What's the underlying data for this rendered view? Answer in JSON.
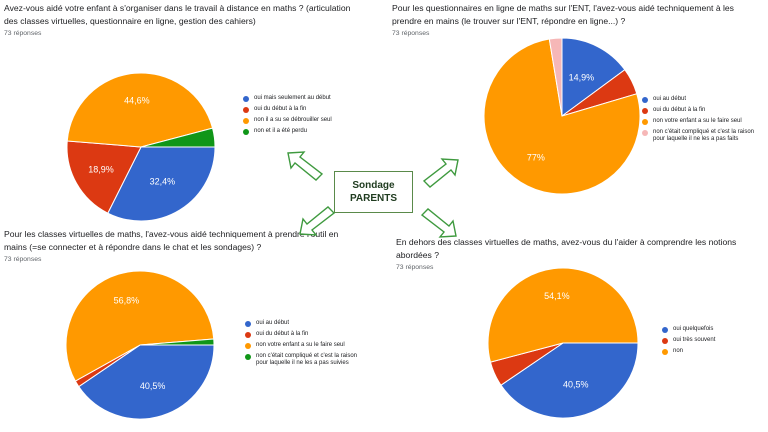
{
  "center": {
    "line1": "Sondage",
    "line2": "PARENTS"
  },
  "colors": {
    "blue": "#3366cc",
    "red": "#dc3912",
    "orange": "#ff9900",
    "green": "#109618",
    "pink": "#f6b7b7"
  },
  "chart_data": [
    {
      "type": "pie",
      "title": "Avez-vous aidé votre enfant à s'organiser dans le travail à distance en maths ? (articulation des classes virtuelles, questionnaire en ligne, gestion des cahiers)",
      "subtitle": "73 réponses",
      "categories": [
        "oui mais seulement au début",
        "oui du début à la fin",
        "non il a su se débrouiller seul",
        "non et il a été perdu"
      ],
      "values": [
        32.4,
        18.9,
        44.6,
        4.1
      ],
      "slice_labels": [
        "32,4%",
        "18,9%",
        "44,6%",
        ""
      ],
      "colors": [
        "#3366cc",
        "#dc3912",
        "#ff9900",
        "#109618"
      ],
      "legend": "right"
    },
    {
      "type": "pie",
      "title": "Pour les questionnaires en ligne de maths sur l'ENT, l'avez-vous aidé techniquement à les prendre en mains (le trouver sur l'ENT, répondre en ligne...) ?",
      "subtitle": "73 réponses",
      "categories": [
        "oui au début",
        "oui du début à la fin",
        "non votre enfant a su le faire seul",
        "non c'était compliqué et c'est la raison pour laquelle il ne les a pas faits"
      ],
      "values": [
        14.9,
        5.5,
        77,
        2.6
      ],
      "slice_labels": [
        "14,9%",
        "",
        "77%",
        ""
      ],
      "colors": [
        "#3366cc",
        "#dc3912",
        "#ff9900",
        "#f6b7b7"
      ],
      "legend": "right"
    },
    {
      "type": "pie",
      "title": "Pour les classes virtuelles de maths, l'avez-vous aidé techniquement à prendre l'outil en mains (=se connecter et à répondre dans le chat et les sondages) ?",
      "subtitle": "73 réponses",
      "categories": [
        "oui au début",
        "oui du début à la fin",
        "non votre enfant a su le faire seul",
        "non c'était compliqué et c'est la raison pour laquelle il ne les a pas suivies"
      ],
      "values": [
        40.5,
        1.4,
        56.8,
        1.3
      ],
      "slice_labels": [
        "40,5%",
        "",
        "56,8%",
        ""
      ],
      "colors": [
        "#3366cc",
        "#dc3912",
        "#ff9900",
        "#109618"
      ],
      "legend": "right"
    },
    {
      "type": "pie",
      "title": "En dehors des classes virtuelles de maths, avez-vous du l'aider à comprendre les notions abordées ?",
      "subtitle": "73 réponses",
      "categories": [
        "oui quelquefois",
        "oui très souvent",
        "non"
      ],
      "values": [
        40.5,
        5.4,
        54.1
      ],
      "slice_labels": [
        "40,5%",
        "",
        "54,1%"
      ],
      "colors": [
        "#3366cc",
        "#dc3912",
        "#ff9900"
      ],
      "legend": "right"
    }
  ]
}
